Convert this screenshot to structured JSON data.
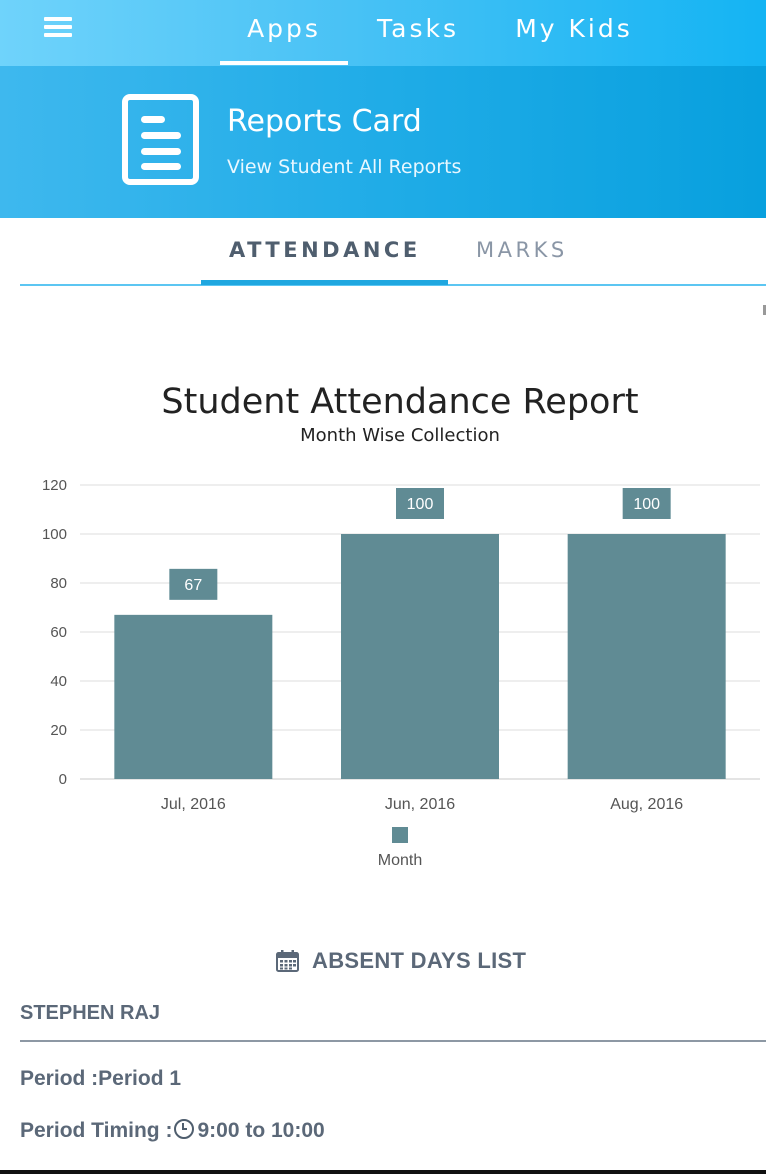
{
  "nav": {
    "tabs": [
      "Apps",
      "Tasks",
      "My Kids"
    ],
    "active": "Apps"
  },
  "header": {
    "title": "Reports Card",
    "subtitle": "View Student All Reports",
    "icon": "report-document-icon"
  },
  "subtabs": {
    "attendance": "ATTENDANCE",
    "marks": "MARKS",
    "active": "ATTENDANCE"
  },
  "chart_data": {
    "type": "bar",
    "title": "Student Attendance Report",
    "subtitle": "Month Wise Collection",
    "categories": [
      "Jul, 2016",
      "Jun, 2016",
      "Aug, 2016"
    ],
    "series": [
      {
        "name": "Month",
        "values": [
          67,
          100,
          100
        ]
      }
    ],
    "ylim": [
      0,
      120
    ],
    "yticks": [
      0,
      20,
      40,
      60,
      80,
      100,
      120
    ],
    "grid": true,
    "legend": "bottom",
    "bar_color": "#608b94"
  },
  "absent": {
    "heading": "ABSENT DAYS LIST",
    "icon": "calendar-icon",
    "student": "STEPHEN RAJ",
    "period": "Period :Period 1",
    "timing_label": "Period Timing :",
    "timing_value": "9:00 to 10:00"
  },
  "colors": {
    "accent": "#14b4f3",
    "text_muted": "#5b6878"
  }
}
